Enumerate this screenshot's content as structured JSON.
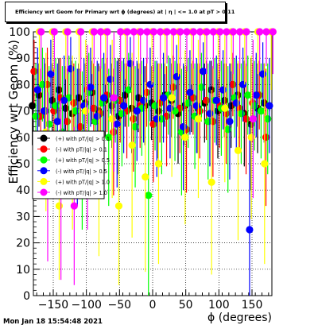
{
  "title": "Efficiency wrt Geom for Primary wrt ϕ (degrees) at | η | <= 1.0 at pT > 0.11",
  "timestamp": "Mon Jan 18 15:54:48 2021",
  "colors": {
    "black": "#000000",
    "red": "#ff0000",
    "green": "#00ff00",
    "blue": "#0000ff",
    "yellow": "#ffff00",
    "magenta": "#ff00ff"
  },
  "chart_data": {
    "type": "scatter",
    "xlabel": "ϕ (degrees)",
    "ylabel": "Efficiency wrt Geom (%)",
    "xlim": [
      -180,
      180
    ],
    "ylim": [
      0,
      100
    ],
    "x_ticks": [
      "−150",
      "−100",
      "−50",
      "0",
      "50",
      "100",
      "150"
    ],
    "y_ticks": [
      "0",
      "10",
      "20",
      "30",
      "40",
      "50",
      "60",
      "70",
      "80",
      "90",
      "100"
    ],
    "grid": true,
    "legend_position": "left",
    "x": [
      -175,
      -165,
      -155,
      -145,
      -135,
      -125,
      -115,
      -105,
      -95,
      -85,
      -75,
      -65,
      -55,
      -45,
      -35,
      -25,
      -15,
      -5,
      5,
      15,
      25,
      35,
      45,
      55,
      65,
      75,
      85,
      95,
      105,
      115,
      125,
      135,
      145,
      155,
      165,
      175
    ],
    "series": [
      {
        "name": "(+) with pT/|q| > 0.1",
        "color": "#000000",
        "values": [
          72,
          76,
          70,
          74,
          78,
          71,
          69,
          75,
          73,
          77,
          70,
          74,
          72,
          68,
          76,
          71,
          75,
          72,
          73,
          70,
          76,
          74,
          69,
          72,
          75,
          71,
          73,
          78,
          70,
          74,
          72,
          76,
          69,
          65,
          71,
          73
        ],
        "errors": [
          15,
          12,
          18,
          14,
          12,
          16,
          20,
          13,
          15,
          12,
          18,
          14,
          16,
          22,
          12,
          17,
          13,
          15,
          14,
          18,
          12,
          14,
          19,
          15,
          13,
          17,
          15,
          11,
          18,
          14,
          16,
          12,
          20,
          25,
          17,
          15
        ]
      },
      {
        "name": "(-) with pT/|q| > 0.1",
        "color": "#ff0000",
        "values": [
          85,
          68,
          80,
          70,
          75,
          66,
          73,
          64,
          78,
          71,
          69,
          76,
          62,
          74,
          70,
          67,
          72,
          77,
          65,
          73,
          68,
          79,
          71,
          63,
          75,
          70,
          74,
          66,
          72,
          69,
          80,
          71,
          67,
          73,
          76,
          60
        ],
        "errors": [
          12,
          18,
          14,
          16,
          15,
          20,
          15,
          22,
          13,
          17,
          18,
          14,
          24,
          16,
          18,
          20,
          16,
          13,
          22,
          15,
          19,
          12,
          17,
          24,
          14,
          18,
          15,
          21,
          16,
          19,
          12,
          17,
          21,
          15,
          13,
          26
        ]
      },
      {
        "name": "(+) with pT/|q| > 0.5",
        "color": "#00ff00",
        "values": [
          68,
          80,
          65,
          72,
          62,
          75,
          70,
          55,
          77,
          66,
          73,
          60,
          74,
          69,
          78,
          64,
          71,
          38,
          72,
          67,
          76,
          70,
          62,
          73,
          68,
          79,
          66,
          74,
          71,
          63,
          75,
          69,
          76,
          72,
          70,
          67
        ],
        "errors": [
          20,
          14,
          22,
          18,
          25,
          16,
          19,
          30,
          15,
          21,
          17,
          26,
          16,
          20,
          14,
          23,
          18,
          40,
          17,
          21,
          15,
          19,
          24,
          17,
          20,
          13,
          22,
          16,
          18,
          24,
          15,
          19,
          15,
          17,
          18,
          21
        ]
      },
      {
        "name": "(-) with pT/|q| > 0.5",
        "color": "#0000ff",
        "values": [
          78,
          70,
          84,
          66,
          74,
          86,
          60,
          72,
          79,
          68,
          75,
          82,
          65,
          72,
          88,
          70,
          74,
          80,
          67,
          75,
          71,
          83,
          64,
          77,
          72,
          85,
          69,
          74,
          78,
          66,
          73,
          80,
          25,
          76,
          84,
          72
        ],
        "errors": [
          16,
          20,
          13,
          22,
          17,
          12,
          26,
          18,
          15,
          21,
          17,
          13,
          24,
          18,
          10,
          19,
          16,
          14,
          22,
          17,
          19,
          12,
          24,
          16,
          18,
          11,
          20,
          17,
          15,
          22,
          18,
          14,
          40,
          16,
          12,
          18
        ]
      },
      {
        "name": "(+) with pT/|q| > 1.0",
        "color": "#ffff00",
        "values": [
          100,
          62,
          100,
          34,
          100,
          58,
          100,
          70,
          100,
          50,
          100,
          67,
          34,
          100,
          57,
          100,
          45,
          100,
          50,
          100,
          75,
          100,
          60,
          100,
          67,
          100,
          43,
          100,
          71,
          100,
          55,
          100,
          60,
          100,
          50,
          100
        ],
        "errors": [
          20,
          30,
          15,
          28,
          18,
          33,
          14,
          27,
          16,
          35,
          20,
          30,
          30,
          18,
          35,
          14,
          36,
          20,
          38,
          16,
          30,
          17,
          33,
          20,
          30,
          12,
          35,
          18,
          28,
          15,
          34,
          20,
          31,
          16,
          38,
          22
        ]
      },
      {
        "name": "(-) with pT/|q| > 1.0",
        "color": "#ff00ff",
        "values": [
          100,
          45,
          100,
          40,
          100,
          34,
          100,
          60,
          100,
          100,
          100,
          75,
          100,
          100,
          100,
          100,
          100,
          100,
          100,
          100,
          100,
          100,
          100,
          100,
          100,
          100,
          100,
          100,
          100,
          100,
          100,
          100,
          67,
          100,
          100,
          100
        ],
        "errors": [
          18,
          32,
          14,
          34,
          16,
          30,
          15,
          35,
          12,
          14,
          16,
          28,
          15,
          13,
          14,
          16,
          12,
          15,
          14,
          12,
          16,
          13,
          15,
          14,
          13,
          16,
          14,
          15,
          12,
          16,
          14,
          13,
          30,
          15,
          13,
          16
        ]
      }
    ]
  }
}
